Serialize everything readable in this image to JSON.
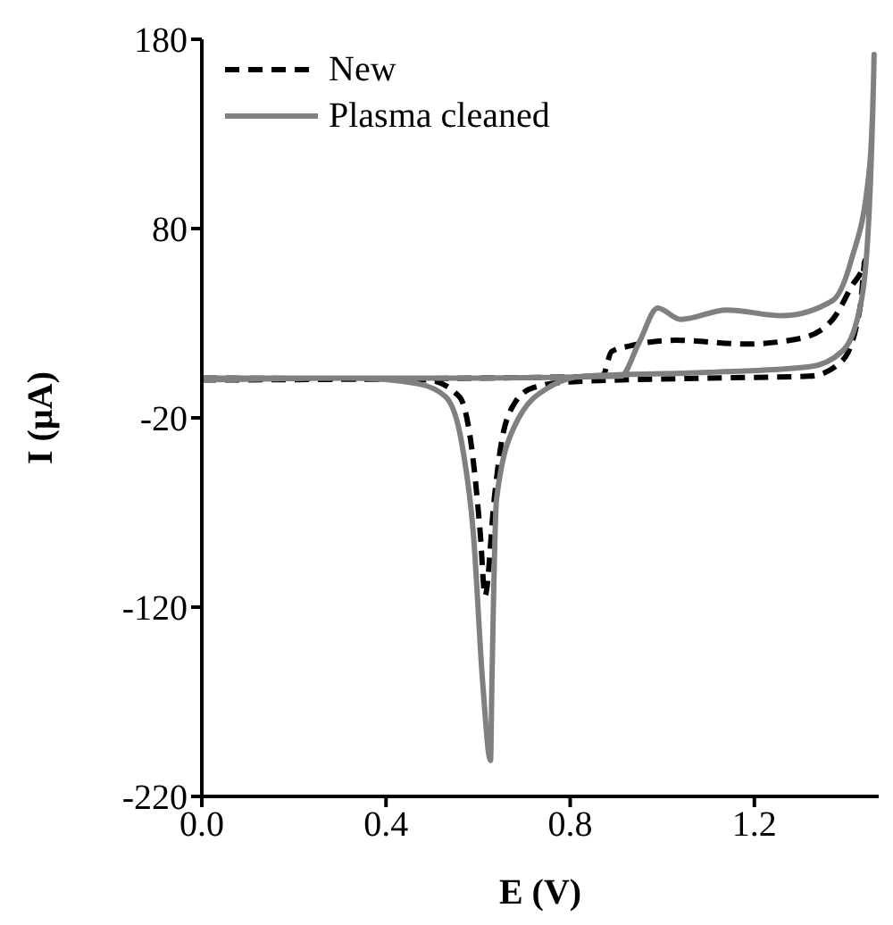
{
  "chart_data": {
    "type": "line",
    "xlabel": "E (V)",
    "ylabel": "I (µA)",
    "xlim": [
      0,
      1.47
    ],
    "xticks": [
      {
        "value": 0,
        "label": "0.0"
      },
      0.4,
      0.8,
      1.2
    ],
    "ylim": [
      -220,
      180
    ],
    "yticks": [
      -220,
      -120,
      -20,
      80,
      180
    ],
    "grid": false,
    "legend": "top left",
    "marker": "none",
    "series": [
      {
        "name": "New",
        "color": "#000000",
        "line_style": "dashed",
        "x": [
          0,
          0.6,
          0.87,
          0.89,
          0.93,
          1.03,
          1.18,
          1.3,
          1.37,
          1.41,
          1.44,
          1.43,
          1.39,
          1.32,
          1.1,
          0.8,
          0.72,
          0.68,
          0.65,
          0.635,
          0.615,
          0.605,
          0.585,
          0.56,
          0.49,
          0
        ],
        "values": [
          0,
          1,
          2,
          15,
          18,
          21,
          19,
          22,
          32,
          49,
          63,
          39,
          10,
          2,
          1,
          -1,
          -4,
          -12,
          -34,
          -63,
          -114,
          -82,
          -34,
          -9,
          0,
          1
        ]
      },
      {
        "name": "Plasma cleaned",
        "color": "#808080",
        "line_style": "solid",
        "x": [
          0,
          0.3,
          0.6,
          0.91,
          0.95,
          0.99,
          1.04,
          1.14,
          1.26,
          1.37,
          1.41,
          1.45,
          1.46,
          1.45,
          1.43,
          1.39,
          1.32,
          1.1,
          0.83,
          0.76,
          0.68,
          0.64,
          0.63,
          0.627,
          0.61,
          0.59,
          0.565,
          0.53,
          0.47,
          0.33,
          0
        ],
        "values": [
          0,
          1,
          1,
          2,
          20,
          38,
          32,
          37,
          34,
          42,
          63,
          112,
          172,
          93,
          39,
          15,
          7,
          4,
          2,
          -3,
          -24,
          -63,
          -160,
          -201,
          -160,
          -82,
          -34,
          -9,
          -2,
          1,
          1
        ]
      }
    ]
  }
}
